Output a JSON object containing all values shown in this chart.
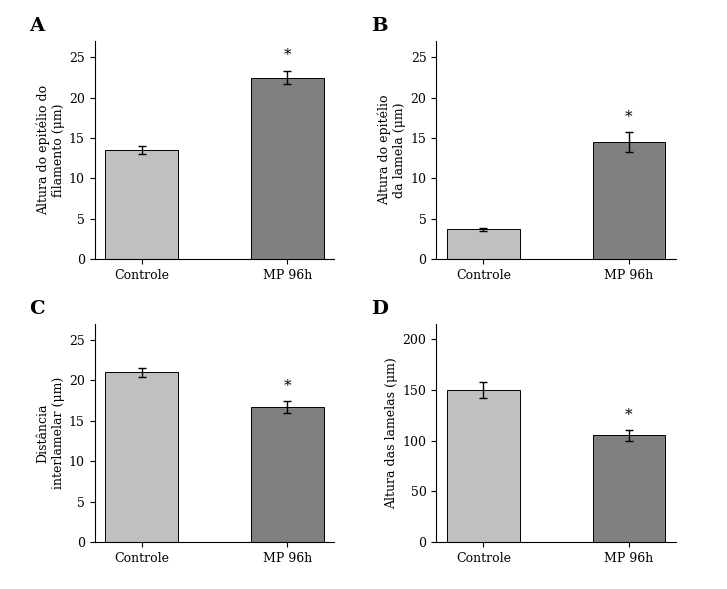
{
  "panels": [
    {
      "label": "A",
      "ylabel": "Altura do epitélio do\nfilamento (μm)",
      "categories": [
        "Controle",
        "MP 96h"
      ],
      "values": [
        13.5,
        22.5
      ],
      "errors": [
        0.5,
        0.8
      ],
      "ylim": [
        0,
        27
      ],
      "yticks": [
        0,
        5,
        10,
        15,
        20,
        25
      ],
      "significant": [
        false,
        true
      ]
    },
    {
      "label": "B",
      "ylabel": "Altura do epitélio\nda lamela (μm)",
      "categories": [
        "Controle",
        "MP 96h"
      ],
      "values": [
        3.7,
        14.5
      ],
      "errors": [
        0.2,
        1.2
      ],
      "ylim": [
        0,
        27
      ],
      "yticks": [
        0,
        5,
        10,
        15,
        20,
        25
      ],
      "significant": [
        false,
        true
      ]
    },
    {
      "label": "C",
      "ylabel": "Distância\ninterlamelar (μm)",
      "categories": [
        "Controle",
        "MP 96h"
      ],
      "values": [
        21.0,
        16.7
      ],
      "errors": [
        0.6,
        0.7
      ],
      "ylim": [
        0,
        27
      ],
      "yticks": [
        0,
        5,
        10,
        15,
        20,
        25
      ],
      "significant": [
        false,
        true
      ]
    },
    {
      "label": "D",
      "ylabel": "Altura das lamelas (μm)",
      "categories": [
        "Controle",
        "MP 96h"
      ],
      "values": [
        150,
        105
      ],
      "errors": [
        8,
        5
      ],
      "ylim": [
        0,
        215
      ],
      "yticks": [
        0,
        50,
        100,
        150,
        200
      ],
      "significant": [
        false,
        true
      ]
    }
  ],
  "bar_colors": [
    "#c0c0c0",
    "#808080"
  ],
  "bar_edgecolor": "#000000",
  "error_color": "#000000",
  "tick_label_fontsize": 9,
  "axis_label_fontsize": 9,
  "panel_label_fontsize": 14,
  "star_fontsize": 11,
  "background_color": "#ffffff",
  "bar_width": 0.5
}
